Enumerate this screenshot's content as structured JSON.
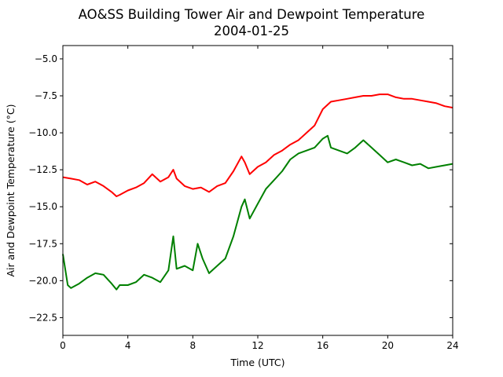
{
  "chart_data": {
    "type": "line",
    "title": "AO&SS Building Tower Air and Dewpoint Temperature",
    "subtitle": "2004-01-25",
    "xlabel": "Time (UTC)",
    "ylabel": "Air and Dewpoint Temperature (°C)",
    "xlim": [
      0,
      24
    ],
    "ylim": [
      -23.7,
      -4.1
    ],
    "xticks": [
      0,
      4,
      8,
      12,
      16,
      20,
      24
    ],
    "xtick_labels": [
      "0",
      "4",
      "8",
      "12",
      "16",
      "20",
      "24"
    ],
    "yticks": [
      -5.0,
      -7.5,
      -10.0,
      -12.5,
      -15.0,
      -17.5,
      -20.0,
      -22.5
    ],
    "ytick_labels": [
      "−5.0",
      "−7.5",
      "−10.0",
      "−12.5",
      "−15.0",
      "−17.5",
      "−20.0",
      "−22.5"
    ],
    "grid": false,
    "legend": "none",
    "series": [
      {
        "color": "#ff0000",
        "x": [
          0,
          0.5,
          1,
          1.5,
          2,
          2.5,
          3,
          3.3,
          3.5,
          4,
          4.5,
          5,
          5.5,
          6,
          6.5,
          6.8,
          7,
          7.5,
          8,
          8.5,
          9,
          9.5,
          10,
          10.5,
          11,
          11.2,
          11.5,
          12,
          12.5,
          13,
          13.5,
          14,
          14.5,
          15,
          15.5,
          16,
          16.5,
          17,
          17.5,
          18,
          18.5,
          19,
          19.5,
          20,
          20.5,
          21,
          21.5,
          22,
          22.5,
          23,
          23.5,
          24
        ],
        "y": [
          -13.0,
          -13.1,
          -13.2,
          -13.5,
          -13.3,
          -13.6,
          -14.0,
          -14.3,
          -14.2,
          -13.9,
          -13.7,
          -13.4,
          -12.8,
          -13.3,
          -13.0,
          -12.5,
          -13.1,
          -13.6,
          -13.8,
          -13.7,
          -14.0,
          -13.6,
          -13.4,
          -12.6,
          -11.6,
          -12.0,
          -12.8,
          -12.3,
          -12.0,
          -11.5,
          -11.2,
          -10.8,
          -10.5,
          -10.0,
          -9.5,
          -8.4,
          -7.9,
          -7.8,
          -7.7,
          -7.6,
          -7.5,
          -7.5,
          -7.4,
          -7.4,
          -7.6,
          -7.7,
          -7.7,
          -7.8,
          -7.9,
          -8.0,
          -8.2,
          -8.3
        ]
      },
      {
        "color": "#008000",
        "x": [
          0,
          0.3,
          0.5,
          1,
          1.5,
          2,
          2.5,
          3,
          3.3,
          3.5,
          4,
          4.5,
          5,
          5.5,
          6,
          6.5,
          6.8,
          7,
          7.5,
          8,
          8.3,
          8.6,
          9,
          9.5,
          10,
          10.5,
          11,
          11.2,
          11.5,
          12,
          12.5,
          13,
          13.5,
          14,
          14.5,
          15,
          15.5,
          16,
          16.3,
          16.5,
          17,
          17.5,
          18,
          18.5,
          19,
          19.5,
          20,
          20.5,
          21,
          21.5,
          22,
          22.5,
          23,
          23.5,
          24
        ],
        "y": [
          -18.2,
          -20.3,
          -20.5,
          -20.2,
          -19.8,
          -19.5,
          -19.6,
          -20.2,
          -20.6,
          -20.3,
          -20.3,
          -20.1,
          -19.6,
          -19.8,
          -20.1,
          -19.3,
          -17.0,
          -19.2,
          -19.0,
          -19.3,
          -17.5,
          -18.5,
          -19.5,
          -19.0,
          -18.5,
          -17.0,
          -15.0,
          -14.5,
          -15.8,
          -14.8,
          -13.8,
          -13.2,
          -12.6,
          -11.8,
          -11.4,
          -11.2,
          -11.0,
          -10.4,
          -10.2,
          -11.0,
          -11.2,
          -11.4,
          -11.0,
          -10.5,
          -11.0,
          -11.5,
          -12.0,
          -11.8,
          -12.0,
          -12.2,
          -12.1,
          -12.4,
          -12.3,
          -12.2,
          -12.1
        ]
      }
    ]
  }
}
